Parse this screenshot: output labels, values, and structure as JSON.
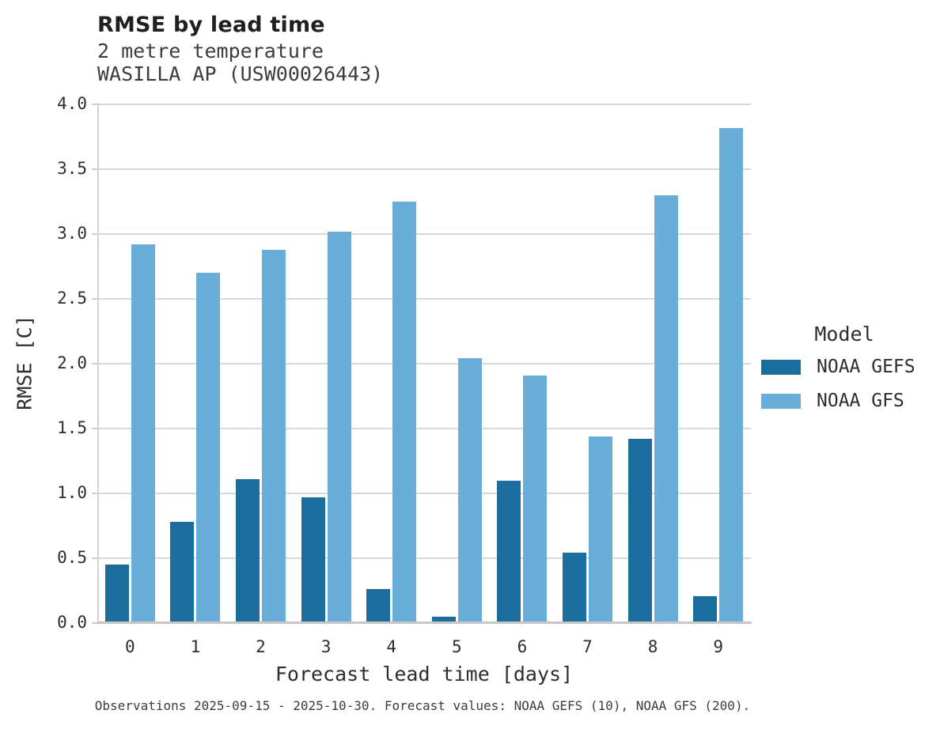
{
  "chart_data": {
    "type": "bar",
    "title": "RMSE by lead time",
    "subtitle": [
      "2 metre temperature",
      "WASILLA AP (USW00026443)"
    ],
    "xlabel": "Forecast lead time [days]",
    "ylabel": "RMSE [C]",
    "categories": [
      "0",
      "1",
      "2",
      "3",
      "4",
      "5",
      "6",
      "7",
      "8",
      "9"
    ],
    "series": [
      {
        "name": "NOAA GEFS",
        "color": "#1b6d9e",
        "values": [
          0.45,
          0.78,
          1.11,
          0.97,
          0.26,
          0.05,
          1.1,
          0.54,
          1.42,
          0.21
        ]
      },
      {
        "name": "NOAA GFS",
        "color": "#69aed8",
        "values": [
          2.92,
          2.7,
          2.88,
          3.02,
          3.25,
          2.04,
          1.91,
          1.44,
          3.3,
          3.82
        ]
      }
    ],
    "ylim": [
      0.0,
      4.0
    ],
    "ytick_step": 0.5,
    "grid": true,
    "legend_title": "Model",
    "legend_position": "right",
    "footer": "Observations 2025-09-15 - 2025-10-30. Forecast values: NOAA GEFS (10), NOAA GFS (200)."
  }
}
